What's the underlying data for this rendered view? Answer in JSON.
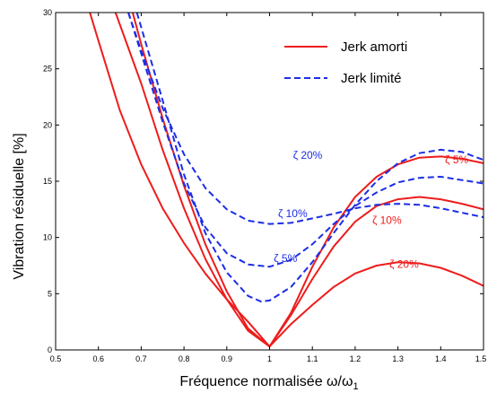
{
  "chart_data": {
    "type": "line",
    "xlabel": "Fréquence normalisée ω/ω",
    "xlabel_sub": "1",
    "ylabel": "Vibration résiduelle [%]",
    "xlim": [
      0.5,
      1.5
    ],
    "ylim": [
      0,
      30
    ],
    "x_ticks": [
      0.5,
      0.6,
      0.7,
      0.8,
      0.9,
      1,
      1.1,
      1.2,
      1.3,
      1.4,
      1.5
    ],
    "x_tick_labels": [
      "0.5",
      "0.6",
      "0.7",
      "0.8",
      "0.9",
      "1",
      "1.1",
      "1.2",
      "1.3",
      "1.4",
      "1.5"
    ],
    "y_ticks": [
      0,
      5,
      10,
      15,
      20,
      25,
      30
    ],
    "y_tick_labels": [
      "0",
      "5",
      "10",
      "15",
      "20",
      "25",
      "30"
    ],
    "grid": false,
    "legend": {
      "position": "top-right",
      "entries": [
        {
          "label": "Jerk amorti",
          "color": "#ee1c1c",
          "style": "solid"
        },
        {
          "label": "Jerk limité",
          "color": "#1c2ee6",
          "style": "dashed"
        }
      ]
    },
    "series": [
      {
        "group": "Jerk amorti",
        "damping": "ζ 5%",
        "color": "#ee1c1c",
        "style": "solid",
        "points": [
          [
            0.68,
            30
          ],
          [
            0.7,
            27.2
          ],
          [
            0.75,
            20.6
          ],
          [
            0.8,
            14.6
          ],
          [
            0.85,
            9.4
          ],
          [
            0.9,
            5.2
          ],
          [
            0.95,
            1.9
          ],
          [
            1.0,
            0.3
          ],
          [
            1.05,
            3.3
          ],
          [
            1.1,
            7.4
          ],
          [
            1.15,
            10.9
          ],
          [
            1.2,
            13.6
          ],
          [
            1.25,
            15.4
          ],
          [
            1.3,
            16.5
          ],
          [
            1.35,
            17.1
          ],
          [
            1.4,
            17.2
          ],
          [
            1.45,
            17.0
          ],
          [
            1.5,
            16.6
          ]
        ]
      },
      {
        "group": "Jerk amorti",
        "damping": "ζ 10%",
        "color": "#ee1c1c",
        "style": "solid",
        "points": [
          [
            0.64,
            30
          ],
          [
            0.7,
            23.7
          ],
          [
            0.75,
            17.8
          ],
          [
            0.8,
            12.6
          ],
          [
            0.85,
            8.1
          ],
          [
            0.9,
            4.5
          ],
          [
            0.95,
            1.7
          ],
          [
            1.0,
            0.3
          ],
          [
            1.05,
            3.1
          ],
          [
            1.1,
            6.3
          ],
          [
            1.15,
            9.2
          ],
          [
            1.2,
            11.4
          ],
          [
            1.25,
            12.8
          ],
          [
            1.3,
            13.4
          ],
          [
            1.35,
            13.6
          ],
          [
            1.4,
            13.4
          ],
          [
            1.45,
            13.0
          ],
          [
            1.5,
            12.5
          ]
        ]
      },
      {
        "group": "Jerk amorti",
        "damping": "ζ 20%",
        "color": "#ee1c1c",
        "style": "solid",
        "points": [
          [
            0.58,
            30
          ],
          [
            0.6,
            27.5
          ],
          [
            0.65,
            21.3
          ],
          [
            0.7,
            16.5
          ],
          [
            0.75,
            12.6
          ],
          [
            0.8,
            9.5
          ],
          [
            0.85,
            6.8
          ],
          [
            0.9,
            4.5
          ],
          [
            0.95,
            2.5
          ],
          [
            1.0,
            0.3
          ],
          [
            1.05,
            2.3
          ],
          [
            1.1,
            4.0
          ],
          [
            1.15,
            5.6
          ],
          [
            1.2,
            6.8
          ],
          [
            1.25,
            7.5
          ],
          [
            1.3,
            7.8
          ],
          [
            1.35,
            7.7
          ],
          [
            1.4,
            7.3
          ],
          [
            1.45,
            6.6
          ],
          [
            1.5,
            5.7
          ]
        ]
      },
      {
        "group": "Jerk limité",
        "damping": "ζ 5%",
        "color": "#1c2ee6",
        "style": "dashed",
        "points": [
          [
            0.69,
            30
          ],
          [
            0.75,
            22.2
          ],
          [
            0.8,
            15.6
          ],
          [
            0.85,
            10.4
          ],
          [
            0.9,
            6.9
          ],
          [
            0.95,
            4.8
          ],
          [
            0.98,
            4.3
          ],
          [
            1.0,
            4.4
          ],
          [
            1.05,
            5.6
          ],
          [
            1.1,
            7.8
          ],
          [
            1.15,
            10.4
          ],
          [
            1.2,
            12.9
          ],
          [
            1.25,
            15.0
          ],
          [
            1.3,
            16.6
          ],
          [
            1.35,
            17.5
          ],
          [
            1.4,
            17.8
          ],
          [
            1.45,
            17.6
          ],
          [
            1.5,
            16.9
          ]
        ]
      },
      {
        "group": "Jerk limité",
        "damping": "ζ 10%",
        "color": "#1c2ee6",
        "style": "dashed",
        "points": [
          [
            0.67,
            30
          ],
          [
            0.75,
            20.3
          ],
          [
            0.8,
            14.8
          ],
          [
            0.85,
            10.9
          ],
          [
            0.9,
            8.6
          ],
          [
            0.95,
            7.6
          ],
          [
            1.0,
            7.4
          ],
          [
            1.05,
            8.0
          ],
          [
            1.1,
            9.4
          ],
          [
            1.15,
            11.2
          ],
          [
            1.2,
            12.8
          ],
          [
            1.25,
            14.0
          ],
          [
            1.3,
            14.9
          ],
          [
            1.35,
            15.3
          ],
          [
            1.4,
            15.4
          ],
          [
            1.45,
            15.1
          ],
          [
            1.5,
            14.8
          ]
        ]
      },
      {
        "group": "Jerk limité",
        "damping": "ζ 20%",
        "color": "#1c2ee6",
        "style": "dashed",
        "points": [
          [
            0.67,
            30
          ],
          [
            0.7,
            26.6
          ],
          [
            0.75,
            21.5
          ],
          [
            0.8,
            17.4
          ],
          [
            0.85,
            14.4
          ],
          [
            0.9,
            12.5
          ],
          [
            0.95,
            11.5
          ],
          [
            1.0,
            11.2
          ],
          [
            1.05,
            11.3
          ],
          [
            1.1,
            11.7
          ],
          [
            1.15,
            12.1
          ],
          [
            1.2,
            12.6
          ],
          [
            1.25,
            12.9
          ],
          [
            1.3,
            13.0
          ],
          [
            1.35,
            12.9
          ],
          [
            1.4,
            12.6
          ],
          [
            1.45,
            12.2
          ],
          [
            1.5,
            11.8
          ]
        ]
      }
    ],
    "annotations": [
      {
        "text": "ζ 20%",
        "x": 1.055,
        "y": 17.0,
        "color": "#1c2ee6"
      },
      {
        "text": "ζ 10%",
        "x": 1.02,
        "y": 11.8,
        "color": "#1c2ee6"
      },
      {
        "text": "ζ 5%",
        "x": 1.01,
        "y": 7.8,
        "color": "#1c2ee6"
      },
      {
        "text": "ζ 5%",
        "x": 1.41,
        "y": 16.6,
        "color": "#ee1c1c"
      },
      {
        "text": "ζ 10%",
        "x": 1.24,
        "y": 11.2,
        "color": "#ee1c1c"
      },
      {
        "text": "ζ 20%",
        "x": 1.28,
        "y": 7.3,
        "color": "#ee1c1c"
      }
    ]
  }
}
